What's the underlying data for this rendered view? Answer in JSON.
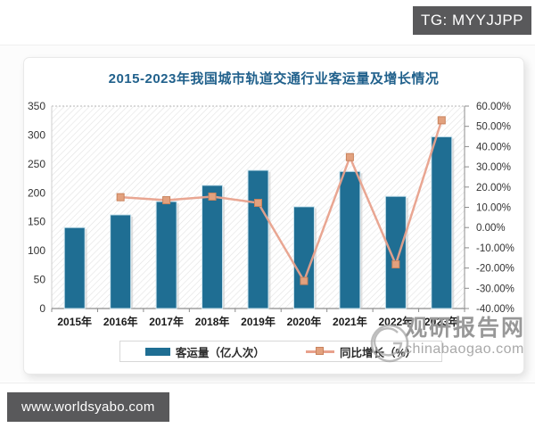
{
  "badge": {
    "text": "TG: MYYJJPP"
  },
  "footer": {
    "url": "www.worldsyabo.com"
  },
  "watermark": {
    "site_name": "观研报告网",
    "site_url": "chinabaogao.com"
  },
  "colors": {
    "bar_fill": "#1f6e93",
    "bar_stroke": "#cfe6f0",
    "line": "#e8a18c",
    "marker_fill": "#e2a17e",
    "marker_stroke": "#c9835d",
    "title": "#21618c",
    "axis_text": "#333333",
    "axis_line": "#8c8c8c",
    "hatch": "#e4e4e4",
    "badge_bg": "#59595b",
    "watermark_gray": "#989898"
  },
  "chart_data": {
    "type": "bar",
    "subtype": "bar-line-combo",
    "title": "2015-2023年我国城市轨道交通行业客运量及增长情况",
    "categories": [
      "2015年",
      "2016年",
      "2017年",
      "2018年",
      "2019年",
      "2020年",
      "2021年",
      "2022年",
      "2023年"
    ],
    "series": [
      {
        "name": "客运量（亿人次）",
        "type": "bar",
        "axis": "left",
        "values": [
          140,
          162,
          185,
          213,
          239,
          176,
          237,
          194,
          297
        ]
      },
      {
        "name": "同比增长（%）",
        "type": "line",
        "axis": "right",
        "values": [
          null,
          15.0,
          13.5,
          15.3,
          12.2,
          -26.4,
          34.8,
          -18.2,
          53.0
        ]
      }
    ],
    "left_axis": {
      "min": 0,
      "max": 350,
      "step": 50,
      "ticks_top_to_bottom": [
        "350",
        "300",
        "250",
        "200",
        "150",
        "100",
        "50",
        "0"
      ]
    },
    "right_axis": {
      "min": -40,
      "max": 60,
      "step": 10,
      "ticks_top_to_bottom": [
        "60.00%",
        "50.00%",
        "40.00%",
        "30.00%",
        "20.00%",
        "10.00%",
        "0.00%",
        "-10.00%",
        "-20.00%",
        "-30.00%",
        "-40.00%"
      ]
    },
    "grid": "top-dotted-line-only",
    "plot_background": "diagonal-hatch",
    "legend_position": "bottom"
  }
}
